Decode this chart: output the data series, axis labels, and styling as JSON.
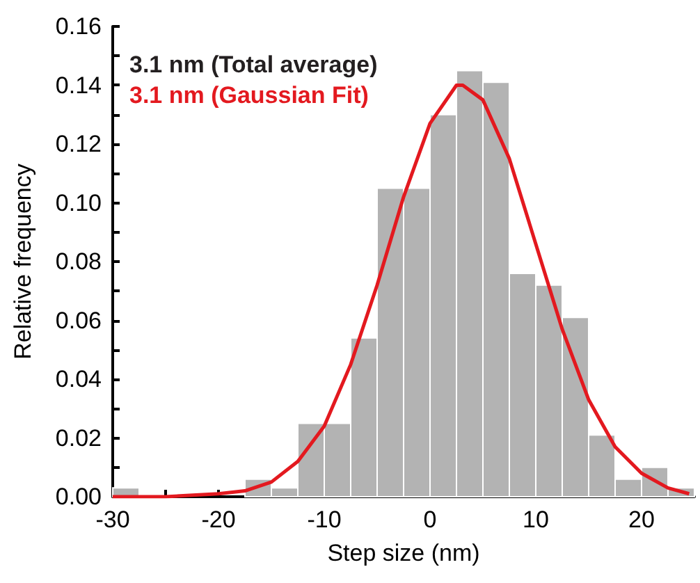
{
  "chart_data": {
    "type": "histogram",
    "xlabel": "Step size (nm)",
    "ylabel": "Relative frequency",
    "bins": [
      -30,
      -27.5,
      -25,
      -22.5,
      -20,
      -17.5,
      -15,
      -12.5,
      -10,
      -7.5,
      -5,
      -2.5,
      0,
      2.5,
      5,
      7.5,
      10,
      12.5,
      15,
      17.5,
      20,
      22.5,
      25
    ],
    "values": [
      0.003,
      0,
      0,
      0,
      0,
      0.006,
      0.003,
      0.025,
      0.025,
      0.054,
      0.105,
      0.105,
      0.13,
      0.145,
      0.141,
      0.076,
      0.072,
      0.061,
      0.021,
      0.006,
      0.01,
      0.003
    ],
    "color": "#b3b3b3",
    "series": [
      {
        "type": "line",
        "name": "3.1 nm (Gaussian Fit)",
        "color": "#e3191f",
        "x": [
          -30,
          -25,
          -20,
          -17.5,
          -15,
          -12.5,
          -10,
          -7.5,
          -5,
          -2.5,
          0,
          2.5,
          3.1,
          5,
          7.5,
          10,
          12.5,
          15,
          17.5,
          20,
          22.5,
          24.5
        ],
        "values": [
          0,
          0,
          0.001,
          0.002,
          0.005,
          0.012,
          0.024,
          0.045,
          0.072,
          0.102,
          0.127,
          0.14,
          0.14,
          0.135,
          0.115,
          0.086,
          0.057,
          0.033,
          0.017,
          0.008,
          0.003,
          0.001
        ]
      }
    ],
    "annotations": [
      "3.1 nm (Total average)"
    ],
    "legend": "top left",
    "grid": false,
    "marker": "none",
    "xlim": [
      -30,
      25
    ],
    "xticks": [
      -30,
      {
        "value": -25,
        "label": null
      },
      -20,
      {
        "value": -15,
        "label": null
      },
      -10,
      {
        "value": -5,
        "label": null
      },
      0,
      {
        "value": 5,
        "label": null
      },
      10,
      {
        "value": 15,
        "label": null
      },
      20
    ],
    "ylim": [
      0,
      0.16
    ],
    "yticks": [
      {
        "value": 0,
        "label": "0.00"
      },
      {
        "value": 0.01,
        "label": null
      },
      {
        "value": 0.02,
        "label": "0.02"
      },
      {
        "value": 0.03,
        "label": null
      },
      {
        "value": 0.04,
        "label": "0.04"
      },
      {
        "value": 0.05,
        "label": null
      },
      {
        "value": 0.06,
        "label": "0.06"
      },
      {
        "value": 0.07,
        "label": null
      },
      {
        "value": 0.08,
        "label": "0.08"
      },
      {
        "value": 0.09,
        "label": null
      },
      {
        "value": 0.1,
        "label": "0.10"
      },
      {
        "value": 0.11,
        "label": null
      },
      {
        "value": 0.12,
        "label": "0.12"
      },
      {
        "value": 0.13,
        "label": null
      },
      {
        "value": 0.14,
        "label": "0.14"
      },
      {
        "value": 0.15,
        "label": null
      },
      {
        "value": 0.16,
        "label": "0.16"
      }
    ]
  }
}
